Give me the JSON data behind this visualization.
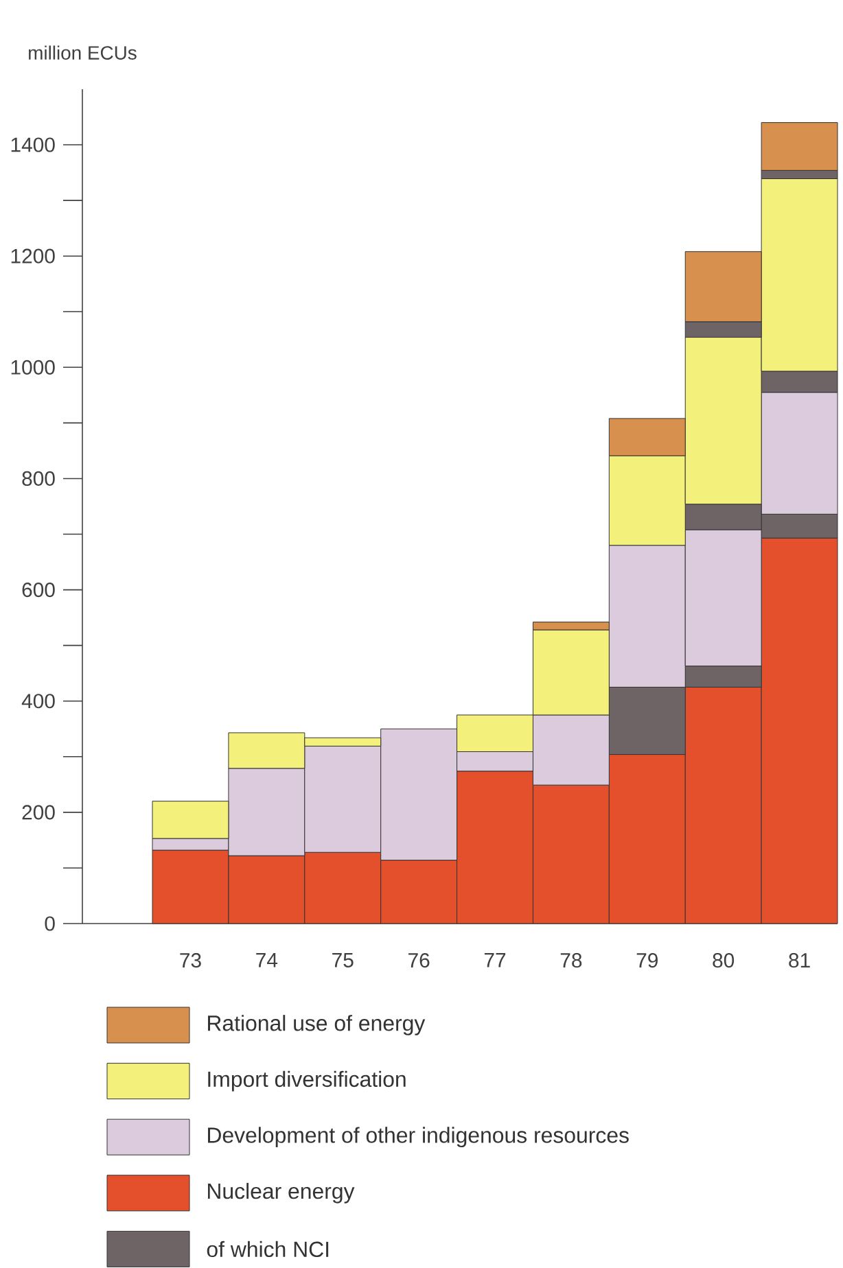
{
  "chart_data": {
    "type": "bar",
    "stacked": true,
    "ylabel": "million ECUs",
    "categories": [
      "73",
      "74",
      "75",
      "76",
      "77",
      "78",
      "79",
      "80",
      "81"
    ],
    "series": [
      {
        "name": "Nuclear energy",
        "color": "#e4502b",
        "values": [
          132,
          122,
          128,
          114,
          274,
          249,
          304,
          425,
          693
        ]
      },
      {
        "name": "of which NCI",
        "color": "#6e6466",
        "values": [
          null,
          null,
          null,
          null,
          null,
          null,
          121,
          38,
          43
        ]
      },
      {
        "name": "Development of other indigenous resources",
        "color": "#dccbdc",
        "values": [
          21,
          157,
          191,
          236,
          35,
          126,
          255,
          245,
          219
        ]
      },
      {
        "color": "#6e6466",
        "values": [
          null,
          null,
          null,
          null,
          null,
          null,
          null,
          46,
          38
        ]
      },
      {
        "name": "Import diversification",
        "color": "#f3f07c",
        "values": [
          67,
          64,
          15,
          null,
          66,
          153,
          161,
          300,
          346
        ]
      },
      {
        "color": "#6e6466",
        "values": [
          null,
          null,
          null,
          null,
          null,
          null,
          null,
          28,
          15
        ]
      },
      {
        "name": "Rational use of energy",
        "color": "#d8904e",
        "values": [
          null,
          null,
          null,
          null,
          null,
          14,
          67,
          126,
          86
        ]
      }
    ],
    "ylim": [
      0,
      1500
    ],
    "yticks": [
      0,
      {
        "value": 100,
        "label": null
      },
      200,
      {
        "value": 300,
        "label": null
      },
      400,
      {
        "value": 500,
        "label": null
      },
      600,
      {
        "value": 700,
        "label": null
      },
      800,
      {
        "value": 900,
        "label": null
      },
      1000,
      {
        "value": 1100,
        "label": null
      },
      1200,
      {
        "value": 1300,
        "label": null
      },
      1400
    ],
    "legend": "bottom"
  }
}
